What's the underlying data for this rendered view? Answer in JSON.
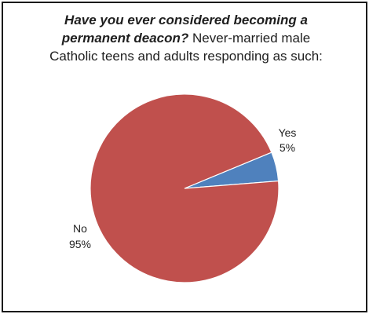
{
  "title": {
    "line1": "Have you ever considered becoming a",
    "line2_question": "permanent deacon?",
    "line2_rest": " Never-married male",
    "line3": "Catholic teens and adults responding as such:"
  },
  "chart_data": {
    "type": "pie",
    "title": "Have you ever considered becoming a permanent deacon? Never-married male Catholic teens and adults responding as such:",
    "slices": [
      {
        "label": "Yes",
        "value": 5,
        "value_label": "5%",
        "color": "#4f81bd"
      },
      {
        "label": "No",
        "value": 95,
        "value_label": "95%",
        "color": "#c0504d"
      }
    ],
    "start_angle_deg": 0,
    "direction": "clockwise-from-upper-right",
    "legend": "none"
  }
}
